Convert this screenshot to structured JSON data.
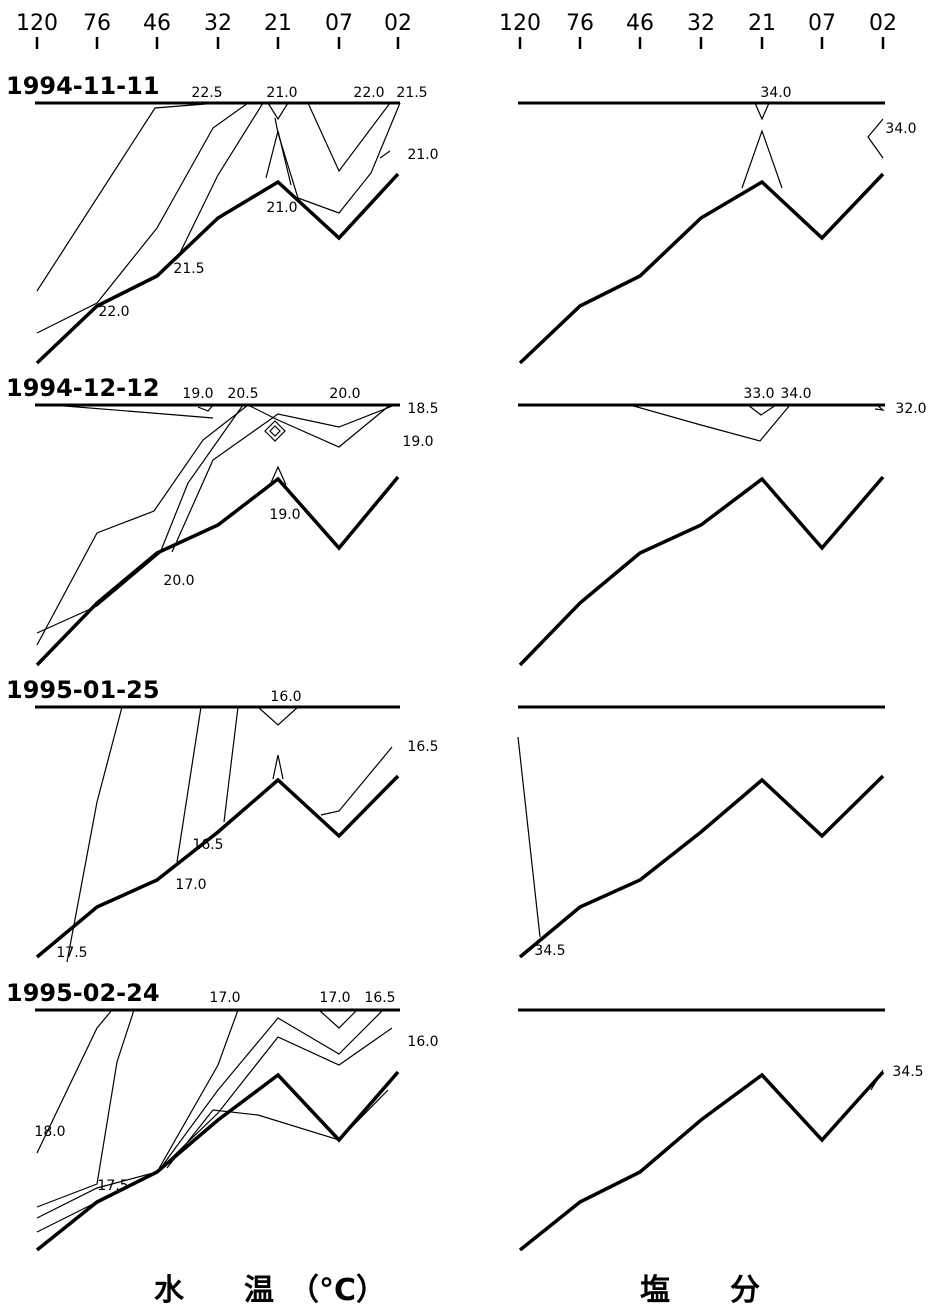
{
  "chart_data": {
    "type": "line",
    "description_kind": "vertical section contour plots",
    "stations": [
      "120",
      "76",
      "46",
      "32",
      "21",
      "07",
      "02"
    ],
    "panels_left_label": "水　　温　（°C）",
    "panels_right_label": "塩　　分",
    "panels": [
      {
        "date": "1994-11-11",
        "temperature_labels": [
          "22.5",
          "21.0",
          "22.0",
          "21.5",
          "21.0",
          "21.0",
          "21.5",
          "22.0"
        ],
        "salinity_labels": [
          "34.0",
          "34.0"
        ]
      },
      {
        "date": "1994-12-12",
        "temperature_labels": [
          "19.0",
          "20.5",
          "20.0",
          "18.5",
          "19.0",
          "19.0",
          "20.0"
        ],
        "salinity_labels": [
          "33.0",
          "34.0",
          "32.0"
        ]
      },
      {
        "date": "1995-01-25",
        "temperature_labels": [
          "16.0",
          "16.5",
          "16.5",
          "17.0",
          "17.5"
        ],
        "salinity_labels": [
          "34.5"
        ]
      },
      {
        "date": "1995-02-24",
        "temperature_labels": [
          "17.0",
          "17.0",
          "16.5",
          "16.0",
          "18.0",
          "17.5"
        ],
        "salinity_labels": [
          "34.5"
        ]
      }
    ]
  }
}
